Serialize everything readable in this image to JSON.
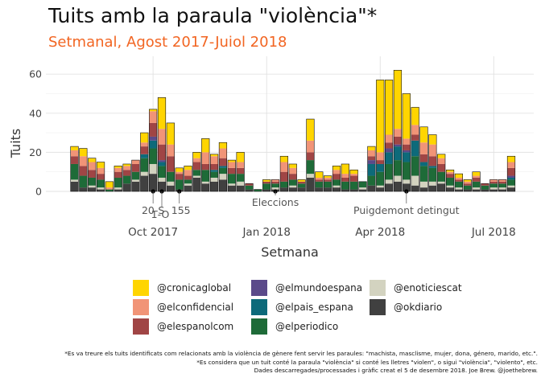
{
  "title": "Tuits amb la paraula \"violència\"*",
  "subtitle": "Setmanal, Agost 2017-Juiol 2018",
  "caption": [
    "*Es va treure els tuits identificats com relacionats amb la violència de gènere fent servir les paraules: \"machista, masclisme, mujer, dona, género, marido, etc.\".",
    "*Es considera que un tuit conté la paraula \"violència\" si conté les lletres \"violen\", o sigui \"violència\", \"violento\", etc.",
    "Dades descarregades/processades i gràfic creat el 5 de desembre 2018. Joe Brew. @joethebrew."
  ],
  "chart_data": {
    "type": "bar",
    "stacked": true,
    "xlabel": "Setmana",
    "ylabel": "Tuits",
    "ylim": [
      0,
      65
    ],
    "yticks": [
      0,
      20,
      40,
      60
    ],
    "xticks": [
      {
        "week": 9,
        "label": "Oct 2017"
      },
      {
        "week": 22,
        "label": "Jan 2018"
      },
      {
        "week": 35,
        "label": "Apr 2018"
      },
      {
        "week": 48,
        "label": "Jul 2018"
      }
    ],
    "grid": true,
    "legend_position": "bottom",
    "categories": [
      0,
      1,
      2,
      3,
      4,
      5,
      6,
      7,
      8,
      9,
      10,
      11,
      12,
      13,
      14,
      15,
      16,
      17,
      18,
      19,
      20,
      21,
      22,
      23,
      24,
      25,
      26,
      27,
      28,
      29,
      30,
      31,
      32,
      33,
      34,
      35,
      36,
      37,
      38,
      39,
      40,
      41,
      42,
      43,
      44,
      45,
      46,
      47,
      48,
      49,
      50
    ],
    "series": [
      {
        "name": "@okdiario",
        "color": "#404040",
        "values": [
          5,
          2,
          2,
          1,
          0,
          1,
          4,
          5,
          8,
          9,
          5,
          3,
          1,
          3,
          7,
          4,
          5,
          6,
          3,
          3,
          1,
          0,
          1,
          1,
          2,
          2,
          2,
          7,
          2,
          2,
          2,
          1,
          1,
          1,
          3,
          2,
          4,
          5,
          4,
          3,
          2,
          3,
          4,
          2,
          1,
          1,
          1,
          1,
          1,
          1,
          2
        ]
      },
      {
        "name": "@enoticiescat",
        "color": "#d3d3c0",
        "values": [
          1,
          0,
          1,
          1,
          0,
          1,
          0,
          1,
          2,
          5,
          2,
          2,
          0,
          1,
          1,
          1,
          2,
          3,
          1,
          2,
          0,
          0,
          0,
          1,
          0,
          1,
          0,
          2,
          0,
          0,
          1,
          0,
          0,
          1,
          0,
          1,
          2,
          3,
          2,
          5,
          3,
          2,
          1,
          1,
          1,
          0,
          1,
          0,
          1,
          1,
          1
        ]
      },
      {
        "name": "@elperiodico",
        "color": "#1e6b38",
        "values": [
          8,
          6,
          4,
          4,
          1,
          5,
          4,
          4,
          7,
          8,
          6,
          5,
          5,
          2,
          3,
          6,
          3,
          3,
          5,
          4,
          2,
          1,
          3,
          2,
          3,
          3,
          2,
          7,
          3,
          3,
          3,
          4,
          4,
          3,
          5,
          7,
          8,
          8,
          9,
          10,
          8,
          7,
          5,
          4,
          3,
          2,
          3,
          2,
          2,
          2,
          3
        ]
      },
      {
        "name": "@elpais_espana",
        "color": "#0d6a7a",
        "values": [
          0,
          0,
          0,
          0,
          0,
          0,
          0,
          0,
          2,
          4,
          2,
          0,
          0,
          0,
          0,
          0,
          1,
          1,
          0,
          0,
          0,
          0,
          0,
          0,
          0,
          0,
          0,
          0,
          0,
          0,
          0,
          0,
          0,
          0,
          6,
          4,
          6,
          7,
          5,
          8,
          2,
          1,
          0,
          0,
          0,
          0,
          0,
          0,
          0,
          0,
          1
        ]
      },
      {
        "name": "@elmundoespana",
        "color": "#5b4a8a",
        "values": [
          0,
          0,
          0,
          0,
          0,
          0,
          0,
          0,
          0,
          2,
          1,
          0,
          0,
          0,
          0,
          0,
          0,
          0,
          0,
          0,
          0,
          0,
          0,
          0,
          0,
          0,
          0,
          0,
          0,
          0,
          0,
          0,
          0,
          0,
          2,
          0,
          2,
          1,
          1,
          0,
          0,
          0,
          0,
          0,
          0,
          0,
          0,
          0,
          0,
          0,
          1
        ]
      },
      {
        "name": "@elespanolcom",
        "color": "#a04545",
        "values": [
          4,
          5,
          4,
          3,
          0,
          3,
          3,
          4,
          4,
          7,
          8,
          8,
          3,
          2,
          4,
          3,
          3,
          4,
          3,
          3,
          1,
          0,
          1,
          1,
          5,
          3,
          1,
          4,
          1,
          1,
          3,
          2,
          3,
          0,
          2,
          2,
          3,
          4,
          3,
          3,
          4,
          5,
          4,
          2,
          1,
          1,
          2,
          1,
          1,
          1,
          4
        ]
      },
      {
        "name": "@elconfidencial",
        "color": "#f19477",
        "values": [
          3,
          5,
          4,
          3,
          1,
          2,
          2,
          2,
          2,
          6,
          8,
          6,
          1,
          3,
          2,
          6,
          4,
          5,
          3,
          3,
          0,
          0,
          0,
          1,
          5,
          3,
          0,
          6,
          1,
          1,
          2,
          2,
          1,
          0,
          3,
          4,
          4,
          4,
          3,
          5,
          6,
          6,
          3,
          1,
          1,
          1,
          1,
          0,
          1,
          1,
          3
        ]
      },
      {
        "name": "@cronicaglobal",
        "color": "#ffd500",
        "values": [
          2,
          4,
          2,
          3,
          3,
          1,
          1,
          0,
          5,
          1,
          16,
          11,
          2,
          2,
          3,
          7,
          1,
          3,
          1,
          5,
          0,
          0,
          1,
          0,
          3,
          2,
          1,
          11,
          3,
          1,
          2,
          5,
          2,
          0,
          2,
          37,
          28,
          30,
          23,
          9,
          8,
          5,
          2,
          1,
          2,
          1,
          2,
          0,
          0,
          0,
          3
        ]
      }
    ],
    "annotations": [
      {
        "week": 9,
        "label": "20-S"
      },
      {
        "week": 10,
        "label": "1-O"
      },
      {
        "week": 12,
        "label": "155"
      },
      {
        "week": 23,
        "label": "Eleccions"
      },
      {
        "week": 38,
        "label": "Puigdemont detingut"
      }
    ]
  }
}
